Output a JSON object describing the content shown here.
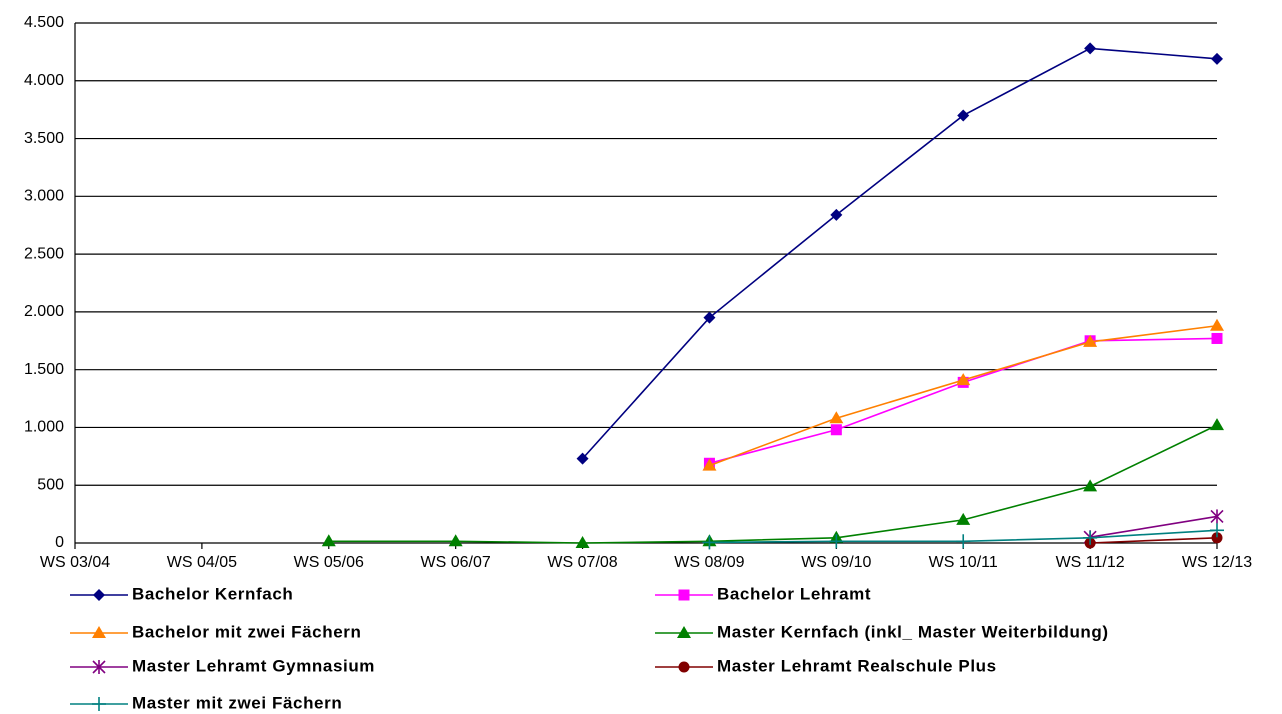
{
  "chart_data": {
    "type": "line",
    "title": "",
    "xlabel": "",
    "ylabel": "",
    "categories": [
      "WS 03/04",
      "WS 04/05",
      "WS 05/06",
      "WS 06/07",
      "WS 07/08",
      "WS 08/09",
      "WS 09/10",
      "WS 10/11",
      "WS 11/12",
      "WS 12/13"
    ],
    "ylim": [
      0,
      4500
    ],
    "yticks": [
      {
        "value": 0,
        "label": "0"
      },
      {
        "value": 500,
        "label": "500"
      },
      {
        "value": 1000,
        "label": "1.000"
      },
      {
        "value": 1500,
        "label": "1.500"
      },
      {
        "value": 2000,
        "label": "2.000"
      },
      {
        "value": 2500,
        "label": "2.500"
      },
      {
        "value": 3000,
        "label": "3.000"
      },
      {
        "value": 3500,
        "label": "3.500"
      },
      {
        "value": 4000,
        "label": "4.000"
      },
      {
        "value": 4500,
        "label": "4.500"
      }
    ],
    "grid": true,
    "legend_position": "bottom",
    "series": [
      {
        "name": "Bachelor Kernfach",
        "color": "#000080",
        "marker": "diamond",
        "values": [
          null,
          null,
          null,
          null,
          730,
          1950,
          2840,
          3700,
          4280,
          4190
        ]
      },
      {
        "name": "Bachelor Lehramt",
        "color": "#ff00ff",
        "marker": "square",
        "values": [
          null,
          null,
          null,
          null,
          null,
          690,
          980,
          1390,
          1750,
          1770
        ]
      },
      {
        "name": "Bachelor mit zwei Fächern",
        "color": "#ff8000",
        "marker": "triangle",
        "values": [
          null,
          null,
          null,
          null,
          null,
          670,
          1080,
          1410,
          1740,
          1880
        ]
      },
      {
        "name": "Master Kernfach (inkl_ Master Weiterbildung)",
        "color": "#008000",
        "marker": "triangle",
        "values": [
          null,
          null,
          15,
          15,
          0,
          15,
          45,
          200,
          490,
          1020
        ]
      },
      {
        "name": "Master Lehramt Gymnasium",
        "color": "#800080",
        "marker": "star",
        "values": [
          null,
          null,
          null,
          null,
          null,
          null,
          null,
          null,
          50,
          230
        ]
      },
      {
        "name": "Master Lehramt Realschule Plus",
        "color": "#800000",
        "marker": "circle",
        "values": [
          null,
          null,
          null,
          null,
          null,
          null,
          null,
          null,
          0,
          45
        ]
      },
      {
        "name": "Master mit zwei Fächern",
        "color": "#008080",
        "marker": "plus",
        "values": [
          null,
          null,
          null,
          null,
          null,
          5,
          15,
          15,
          45,
          110
        ]
      }
    ]
  }
}
